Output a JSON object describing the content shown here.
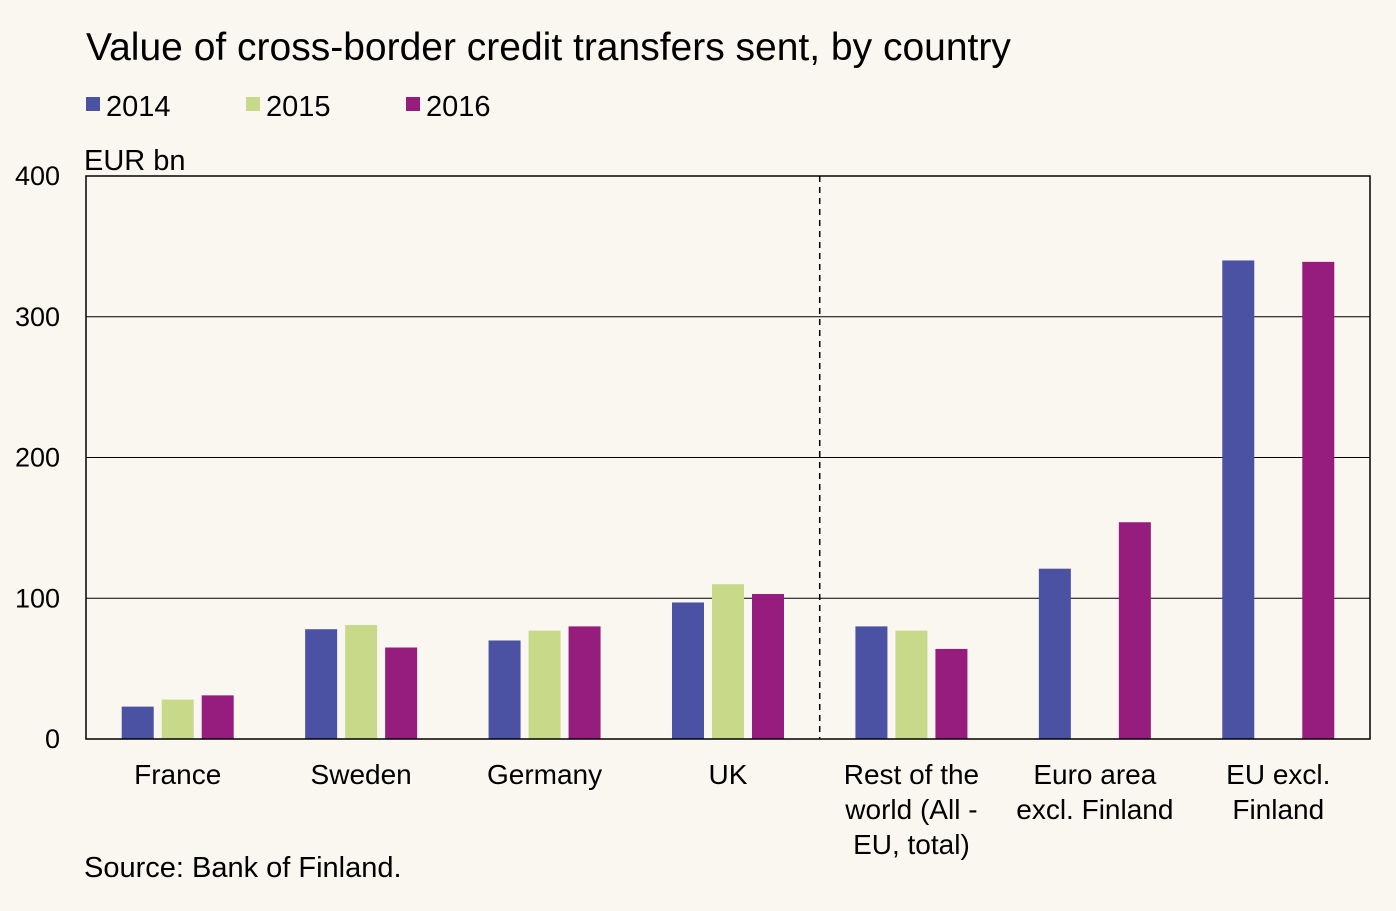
{
  "chart_data": {
    "type": "bar",
    "title": "Value of cross-border credit transfers sent, by country",
    "unit_label": "EUR bn",
    "source": "Source: Bank of Finland.",
    "categories": [
      [
        "France"
      ],
      [
        "Sweden"
      ],
      [
        "Germany"
      ],
      [
        "UK"
      ],
      [
        "Rest of the",
        "world (All -",
        "EU, total)"
      ],
      [
        "Euro area",
        "excl. Finland"
      ],
      [
        "EU excl.",
        "Finland"
      ]
    ],
    "series": [
      {
        "name": "2014",
        "color": "#4b52a3",
        "values": [
          23,
          78,
          70,
          97,
          80,
          121,
          340
        ]
      },
      {
        "name": "2015",
        "color": "#c8d98a",
        "values": [
          28,
          81,
          77,
          110,
          77,
          null,
          null
        ]
      },
      {
        "name": "2016",
        "color": "#961c7e",
        "values": [
          31,
          65,
          80,
          103,
          64,
          154,
          339
        ]
      }
    ],
    "ylim": [
      0,
      400
    ],
    "yticks": [
      0,
      100,
      200,
      300,
      400
    ],
    "grid": true,
    "legend_position": "top-left",
    "divider_after_category": 3
  }
}
